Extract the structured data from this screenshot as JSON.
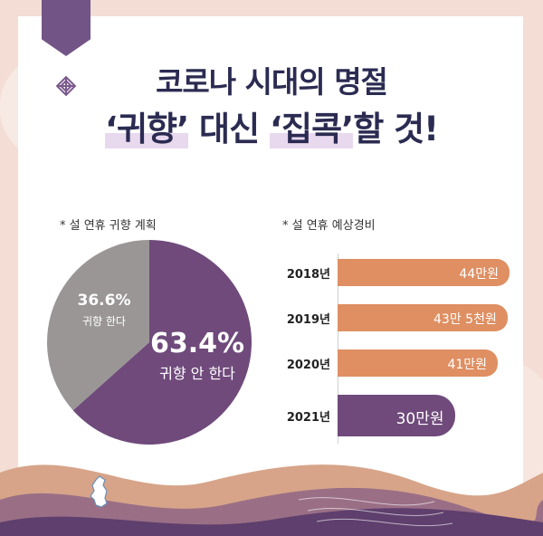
{
  "title": {
    "line1": "코로나 시대의 명절",
    "line2_parts": [
      "‘귀향’",
      " 대신 ",
      "‘집콕’",
      "할 것!"
    ]
  },
  "colors": {
    "purple": "#6f4a7b",
    "gray": "#9a9696",
    "orange": "#df8f62",
    "title": "#2b2b52"
  },
  "icons": [
    "knot-icon",
    "korea-map-icon"
  ],
  "chart_data": [
    {
      "type": "pie",
      "subtitle": "*  설 연휴 귀향 계획",
      "slices": [
        {
          "label": "귀향 안 한다",
          "value": 63.4,
          "display": "63.4%"
        },
        {
          "label": "귀향 한다",
          "value": 36.6,
          "display": "36.6%"
        }
      ]
    },
    {
      "type": "bar",
      "orientation": "horizontal",
      "subtitle": "* 설 연휴 예상경비",
      "categories": [
        "2018년",
        "2019년",
        "2020년",
        "2021년"
      ],
      "values": [
        44,
        43.5,
        41,
        30
      ],
      "value_labels": [
        "44만원",
        "43만 5천원",
        "41만원",
        "30만원"
      ],
      "unit": "만원",
      "highlight_category": "2021년"
    }
  ]
}
